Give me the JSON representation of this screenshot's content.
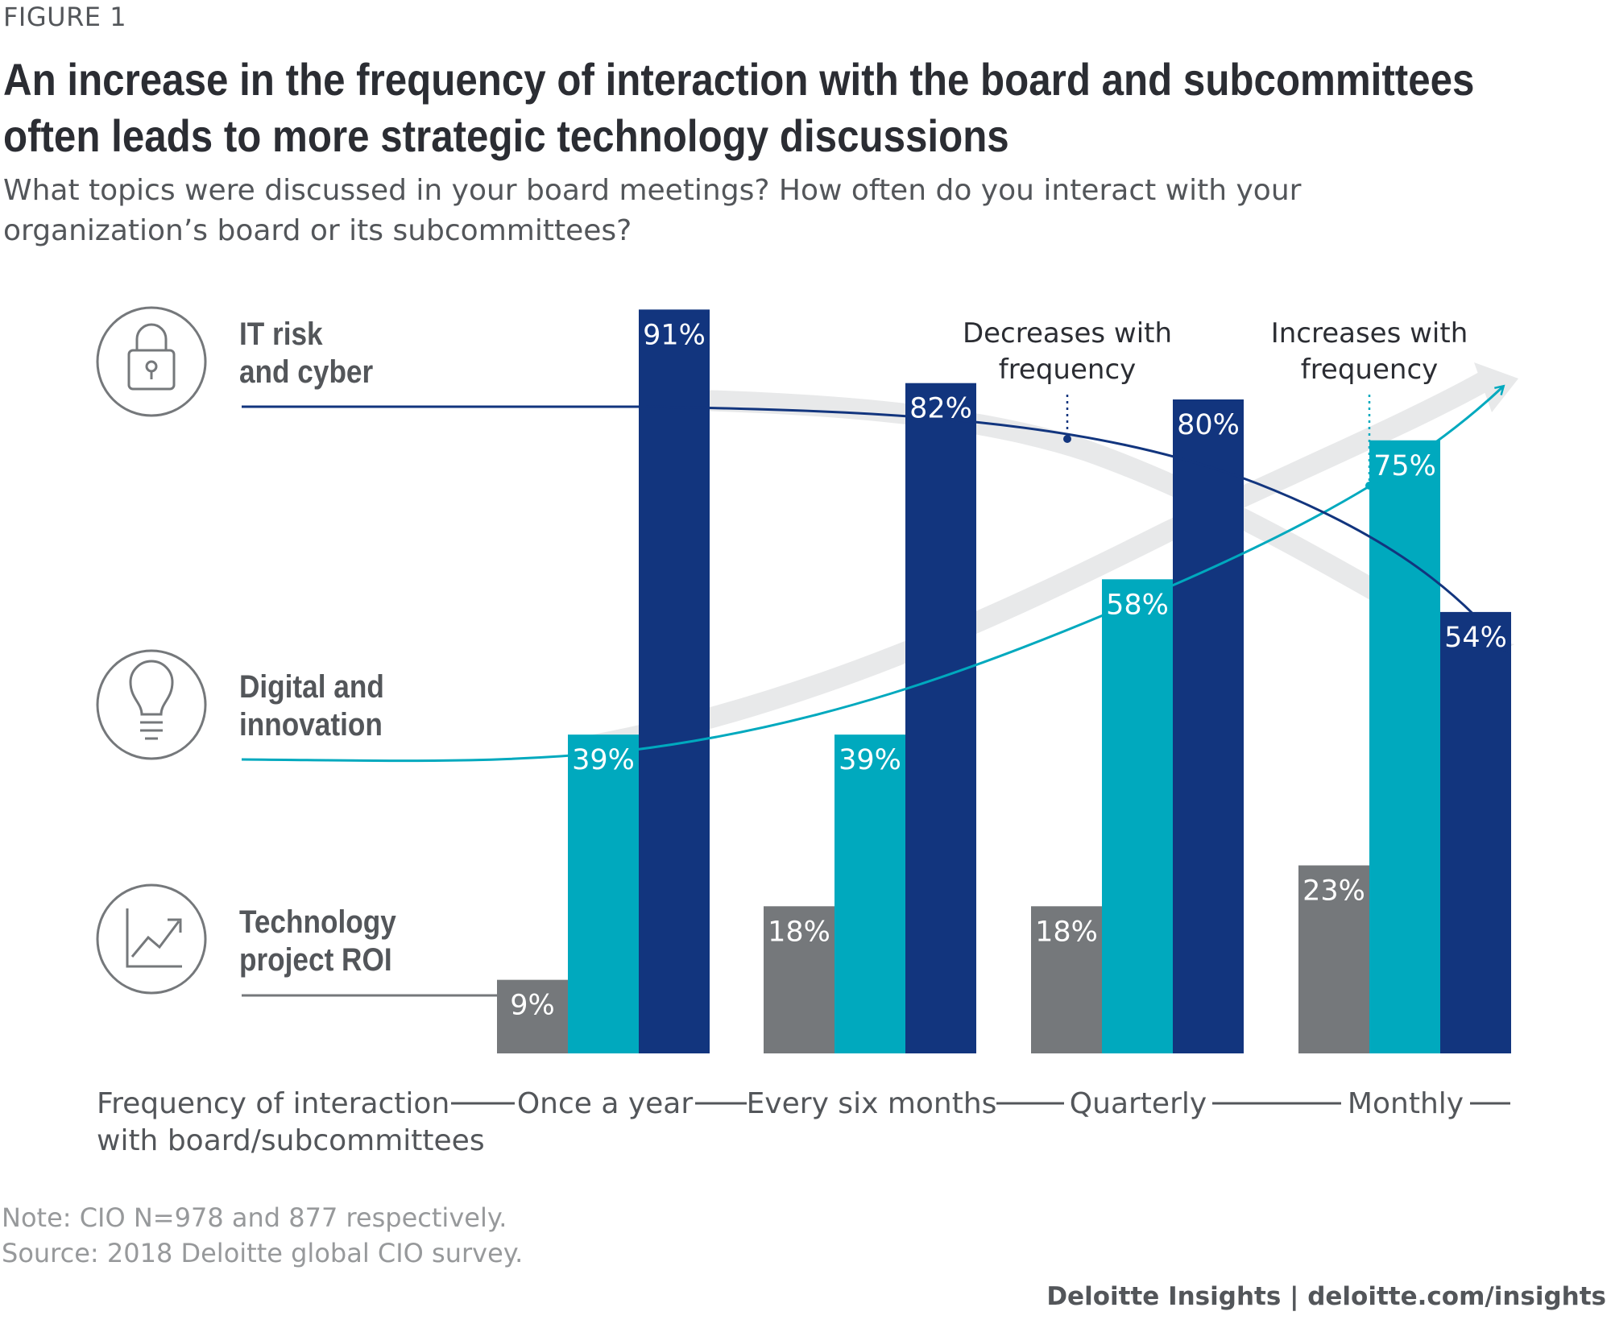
{
  "figure_label": "FIGURE 1",
  "title": {
    "line1": "An increase in the frequency of interaction with the board and subcommittees",
    "line2": "often leads to more strategic technology discussions"
  },
  "subtitle": {
    "line1": "What topics were discussed in your board meetings? How often do you interact with your",
    "line2": "organization’s board or its subcommittees?"
  },
  "chart_data": {
    "type": "bar",
    "xlabel": "Frequency of interaction with board/subcommittees",
    "xlabel_lines": [
      "Frequency of interaction",
      "with board/subcommittees"
    ],
    "categories": [
      "Once a year",
      "Every six months",
      "Quarterly",
      "Monthly"
    ],
    "ylim": [
      0,
      100
    ],
    "series": [
      {
        "name": "Technology project ROI",
        "name_lines": [
          "Technology",
          "project ROI"
        ],
        "icon": "chart-trend-icon",
        "color": "#75787b",
        "values": [
          9,
          18,
          18,
          23
        ],
        "labels": [
          "9%",
          "18%",
          "18%",
          "23%"
        ]
      },
      {
        "name": "Digital and innovation",
        "name_lines": [
          "Digital and",
          "innovation"
        ],
        "icon": "lightbulb-icon",
        "color": "#00a9be",
        "values": [
          39,
          39,
          58,
          75
        ],
        "labels": [
          "39%",
          "39%",
          "58%",
          "75%"
        ]
      },
      {
        "name": "IT risk and cyber",
        "name_lines": [
          "IT risk",
          "and cyber"
        ],
        "icon": "padlock-icon",
        "color": "#12357e",
        "values": [
          91,
          82,
          80,
          54
        ],
        "labels": [
          "91%",
          "82%",
          "80%",
          "54%"
        ]
      }
    ],
    "annotations": [
      {
        "text_lines": [
          "Decreases with",
          "frequency"
        ],
        "series": "IT risk and cyber",
        "color": "#12357e"
      },
      {
        "text_lines": [
          "Increases with",
          "frequency"
        ],
        "series": "Digital and innovation",
        "color": "#00a9be"
      }
    ]
  },
  "note": {
    "line1": "Note: CIO N=978 and 877 respectively.",
    "line2": "Source: 2018 Deloitte global CIO survey."
  },
  "footer": "Deloitte Insights | deloitte.com/insights"
}
